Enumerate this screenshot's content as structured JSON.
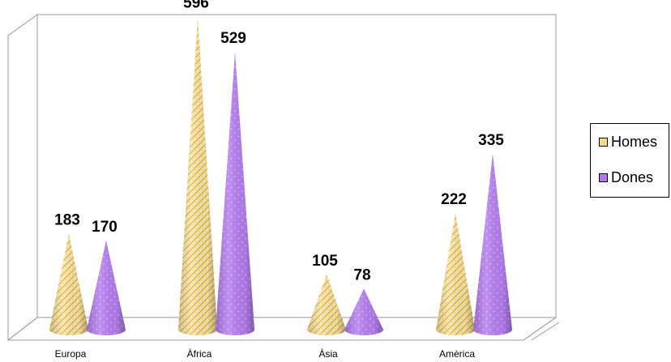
{
  "chart_data": {
    "type": "bar",
    "style": "3d-cone",
    "categories": [
      "Europa",
      "Àfrica",
      "Àsia",
      "Amèrica"
    ],
    "series": [
      {
        "name": "Homes",
        "values": [
          183,
          596,
          105,
          222
        ],
        "color": "#f3d98a",
        "pattern_color": "#e8b84a"
      },
      {
        "name": "Dones",
        "values": [
          170,
          529,
          78,
          335
        ],
        "color": "#b078e8",
        "pattern_color": "#d8b8f8"
      }
    ],
    "ylim": [
      0,
      600
    ],
    "grid": false,
    "legend_position": "right"
  }
}
